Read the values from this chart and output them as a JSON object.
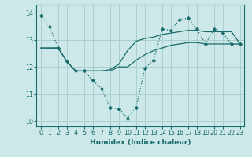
{
  "title": "",
  "xlabel": "Humidex (Indice chaleur)",
  "bg_color": "#cce8e8",
  "grid_color": "#aacece",
  "line_color": "#1a6b6b",
  "xlim": [
    -0.5,
    23.5
  ],
  "ylim": [
    9.8,
    14.3
  ],
  "xticks": [
    0,
    1,
    2,
    3,
    4,
    5,
    6,
    7,
    8,
    9,
    10,
    11,
    12,
    13,
    14,
    15,
    16,
    17,
    18,
    19,
    20,
    21,
    22,
    23
  ],
  "yticks": [
    10,
    11,
    12,
    13,
    14
  ],
  "line1_x": [
    0,
    1,
    2,
    3,
    4,
    5,
    6,
    7,
    8,
    9,
    10,
    11,
    12,
    13,
    14,
    15,
    16,
    17,
    18,
    19,
    20,
    21,
    22,
    23
  ],
  "line1_y": [
    13.9,
    13.5,
    12.7,
    12.2,
    11.85,
    11.85,
    11.5,
    11.2,
    10.5,
    10.45,
    10.1,
    10.5,
    11.95,
    12.25,
    13.4,
    13.35,
    13.75,
    13.8,
    13.4,
    12.85,
    13.4,
    13.25,
    12.85,
    12.85
  ],
  "line2_x": [
    0,
    1,
    2,
    3,
    4,
    5,
    6,
    7,
    8,
    9,
    10,
    11,
    12,
    13,
    14,
    15,
    16,
    17,
    18,
    19,
    20,
    21,
    22,
    23
  ],
  "line2_y": [
    12.7,
    12.7,
    12.7,
    12.2,
    11.85,
    11.85,
    11.85,
    11.85,
    11.9,
    12.1,
    12.6,
    12.95,
    13.05,
    13.1,
    13.2,
    13.25,
    13.3,
    13.35,
    13.35,
    13.3,
    13.3,
    13.3,
    13.3,
    12.85
  ],
  "line3_x": [
    0,
    1,
    2,
    3,
    4,
    5,
    6,
    7,
    8,
    9,
    10,
    11,
    12,
    13,
    14,
    15,
    16,
    17,
    18,
    19,
    20,
    21,
    22,
    23
  ],
  "line3_y": [
    12.7,
    12.7,
    12.7,
    12.2,
    11.85,
    11.85,
    11.85,
    11.85,
    11.85,
    12.0,
    12.0,
    12.25,
    12.45,
    12.6,
    12.7,
    12.8,
    12.85,
    12.9,
    12.9,
    12.85,
    12.85,
    12.85,
    12.85,
    12.85
  ],
  "xlabel_fontsize": 6.5,
  "tick_fontsize": 5.8,
  "lw": 0.9
}
